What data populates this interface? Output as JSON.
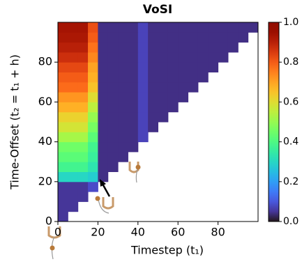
{
  "chart_data": {
    "type": "heatmap",
    "title": "VoSI",
    "x_label": "Timestep (t₁)",
    "y_label": "Time-Offset (t₂ = t₁ + h)",
    "xlim": [
      0,
      100
    ],
    "ylim": [
      0,
      100
    ],
    "xticks": [
      0,
      20,
      40,
      60,
      80
    ],
    "yticks": [
      0,
      20,
      40,
      60,
      80
    ],
    "colormap": "turbo",
    "clim": [
      0,
      1
    ],
    "cbar_ticks": [
      {
        "value": 0,
        "label": "0.0"
      },
      0.2,
      0.4,
      0.6,
      0.8,
      {
        "value": 1,
        "label": "1.0"
      }
    ],
    "z": [
      [
        0.05,
        null,
        null,
        null,
        null,
        null,
        null,
        null,
        null,
        null,
        null,
        null,
        null,
        null,
        null,
        null,
        null,
        null,
        null,
        null
      ],
      [
        0.05,
        0.05,
        null,
        null,
        null,
        null,
        null,
        null,
        null,
        null,
        null,
        null,
        null,
        null,
        null,
        null,
        null,
        null,
        null,
        null
      ],
      [
        0.05,
        0.05,
        0.05,
        null,
        null,
        null,
        null,
        null,
        null,
        null,
        null,
        null,
        null,
        null,
        null,
        null,
        null,
        null,
        null,
        null
      ],
      [
        0.05,
        0.05,
        0.05,
        0.08,
        null,
        null,
        null,
        null,
        null,
        null,
        null,
        null,
        null,
        null,
        null,
        null,
        null,
        null,
        null,
        null
      ],
      [
        0.3,
        0.3,
        0.3,
        0.28,
        0.04,
        null,
        null,
        null,
        null,
        null,
        null,
        null,
        null,
        null,
        null,
        null,
        null,
        null,
        null,
        null
      ],
      [
        0.38,
        0.38,
        0.38,
        0.33,
        0.04,
        0.04,
        null,
        null,
        null,
        null,
        null,
        null,
        null,
        null,
        null,
        null,
        null,
        null,
        null,
        null
      ],
      [
        0.42,
        0.42,
        0.42,
        0.36,
        0.04,
        0.04,
        0.04,
        null,
        null,
        null,
        null,
        null,
        null,
        null,
        null,
        null,
        null,
        null,
        null,
        null
      ],
      [
        0.45,
        0.45,
        0.45,
        0.38,
        0.04,
        0.04,
        0.04,
        0.04,
        null,
        null,
        null,
        null,
        null,
        null,
        null,
        null,
        null,
        null,
        null,
        null
      ],
      [
        0.52,
        0.52,
        0.52,
        0.42,
        0.04,
        0.04,
        0.04,
        0.04,
        0.07,
        null,
        null,
        null,
        null,
        null,
        null,
        null,
        null,
        null,
        null,
        null
      ],
      [
        0.58,
        0.58,
        0.58,
        0.46,
        0.04,
        0.04,
        0.04,
        0.04,
        0.07,
        0.04,
        null,
        null,
        null,
        null,
        null,
        null,
        null,
        null,
        null,
        null
      ],
      [
        0.62,
        0.62,
        0.62,
        0.5,
        0.04,
        0.04,
        0.04,
        0.04,
        0.07,
        0.04,
        0.04,
        null,
        null,
        null,
        null,
        null,
        null,
        null,
        null,
        null
      ],
      [
        0.68,
        0.68,
        0.68,
        0.55,
        0.04,
        0.04,
        0.04,
        0.04,
        0.07,
        0.04,
        0.04,
        0.04,
        null,
        null,
        null,
        null,
        null,
        null,
        null,
        null
      ],
      [
        0.72,
        0.72,
        0.72,
        0.6,
        0.04,
        0.04,
        0.04,
        0.04,
        0.07,
        0.04,
        0.04,
        0.04,
        0.04,
        null,
        null,
        null,
        null,
        null,
        null,
        null
      ],
      [
        0.78,
        0.78,
        0.78,
        0.65,
        0.04,
        0.04,
        0.04,
        0.04,
        0.07,
        0.04,
        0.04,
        0.04,
        0.04,
        0.04,
        null,
        null,
        null,
        null,
        null,
        null
      ],
      [
        0.8,
        0.8,
        0.8,
        0.68,
        0.04,
        0.04,
        0.04,
        0.04,
        0.07,
        0.04,
        0.04,
        0.04,
        0.04,
        0.04,
        0.04,
        null,
        null,
        null,
        null,
        null
      ],
      [
        0.83,
        0.83,
        0.83,
        0.7,
        0.04,
        0.04,
        0.04,
        0.04,
        0.07,
        0.04,
        0.04,
        0.04,
        0.04,
        0.04,
        0.04,
        0.04,
        null,
        null,
        null,
        null
      ],
      [
        0.87,
        0.87,
        0.87,
        0.74,
        0.04,
        0.04,
        0.04,
        0.04,
        0.07,
        0.04,
        0.04,
        0.04,
        0.04,
        0.04,
        0.04,
        0.04,
        0.04,
        null,
        null,
        null
      ],
      [
        0.9,
        0.9,
        0.9,
        0.77,
        0.04,
        0.04,
        0.04,
        0.04,
        0.07,
        0.04,
        0.04,
        0.04,
        0.04,
        0.04,
        0.04,
        0.04,
        0.04,
        0.04,
        null,
        null
      ],
      [
        0.92,
        0.92,
        0.92,
        0.8,
        0.04,
        0.04,
        0.04,
        0.04,
        0.07,
        0.04,
        0.04,
        0.04,
        0.04,
        0.04,
        0.04,
        0.04,
        0.04,
        0.04,
        0.04,
        null
      ],
      [
        0.93,
        0.93,
        0.93,
        0.82,
        0.04,
        0.04,
        0.04,
        0.04,
        0.07,
        0.04,
        0.04,
        0.04,
        0.04,
        0.04,
        0.04,
        0.04,
        0.04,
        0.04,
        0.04,
        0.04
      ]
    ]
  }
}
